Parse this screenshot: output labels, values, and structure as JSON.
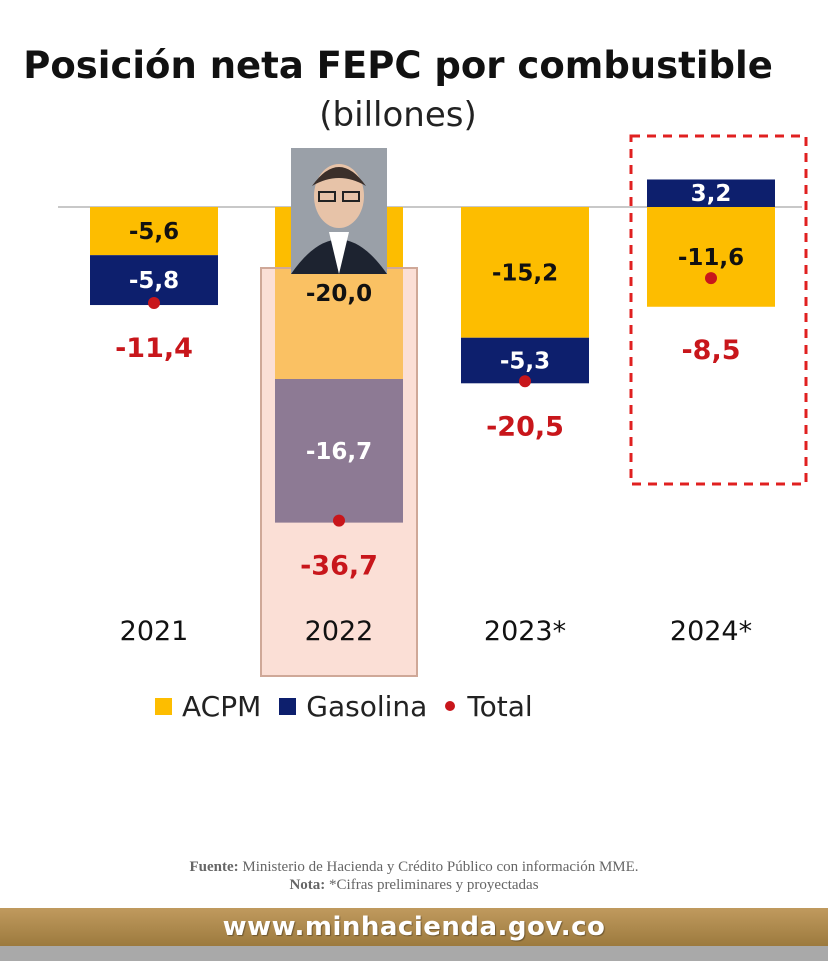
{
  "title": "Posición neta FEPC por combustible",
  "subtitle": "(billones)",
  "legend": {
    "acpm": "ACPM",
    "gasolina": "Gasolina",
    "total": "Total"
  },
  "colors": {
    "acpm": "#fdbd00",
    "gasolina": "#0d1f6d",
    "total_dot": "#c8161b",
    "total_label": "#c8161b",
    "highlight_box": "#e02020",
    "overlay": "#f7c5b5"
  },
  "chart_data": {
    "type": "bar",
    "stacked": true,
    "categories": [
      "2021",
      "2022",
      "2023*",
      "2024*"
    ],
    "series": [
      {
        "name": "ACPM",
        "values": [
          -5.6,
          -20.0,
          -15.2,
          -11.6
        ],
        "labels": [
          "-5,6",
          "-20,0",
          "-15,2",
          "-11,6"
        ]
      },
      {
        "name": "Gasolina",
        "values": [
          -5.8,
          -16.7,
          -5.3,
          3.2
        ],
        "labels": [
          "-5,8",
          "-16,7",
          "-5,3",
          "3,2"
        ]
      }
    ],
    "total": {
      "name": "Total",
      "values": [
        -11.4,
        -36.7,
        -20.5,
        -8.5
      ],
      "labels": [
        "-11,4",
        "-36,7",
        "-20,5",
        "-8,5"
      ]
    },
    "title": "Posición neta FEPC por combustible",
    "subtitle": "(billones)",
    "grid": false,
    "legend_position": "bottom",
    "highlighted_category": "2024*",
    "overlay_category": "2022"
  },
  "source": {
    "fuente_label": "Fuente:",
    "fuente_text": "Ministerio de Hacienda y Crédito Público con información MME.",
    "nota_label": "Nota:",
    "nota_text": "*Cifras preliminares y proyectadas"
  },
  "footer_url": "www.minhacienda.gov.co",
  "icons": {
    "person_photo": "person-photo-icon"
  }
}
